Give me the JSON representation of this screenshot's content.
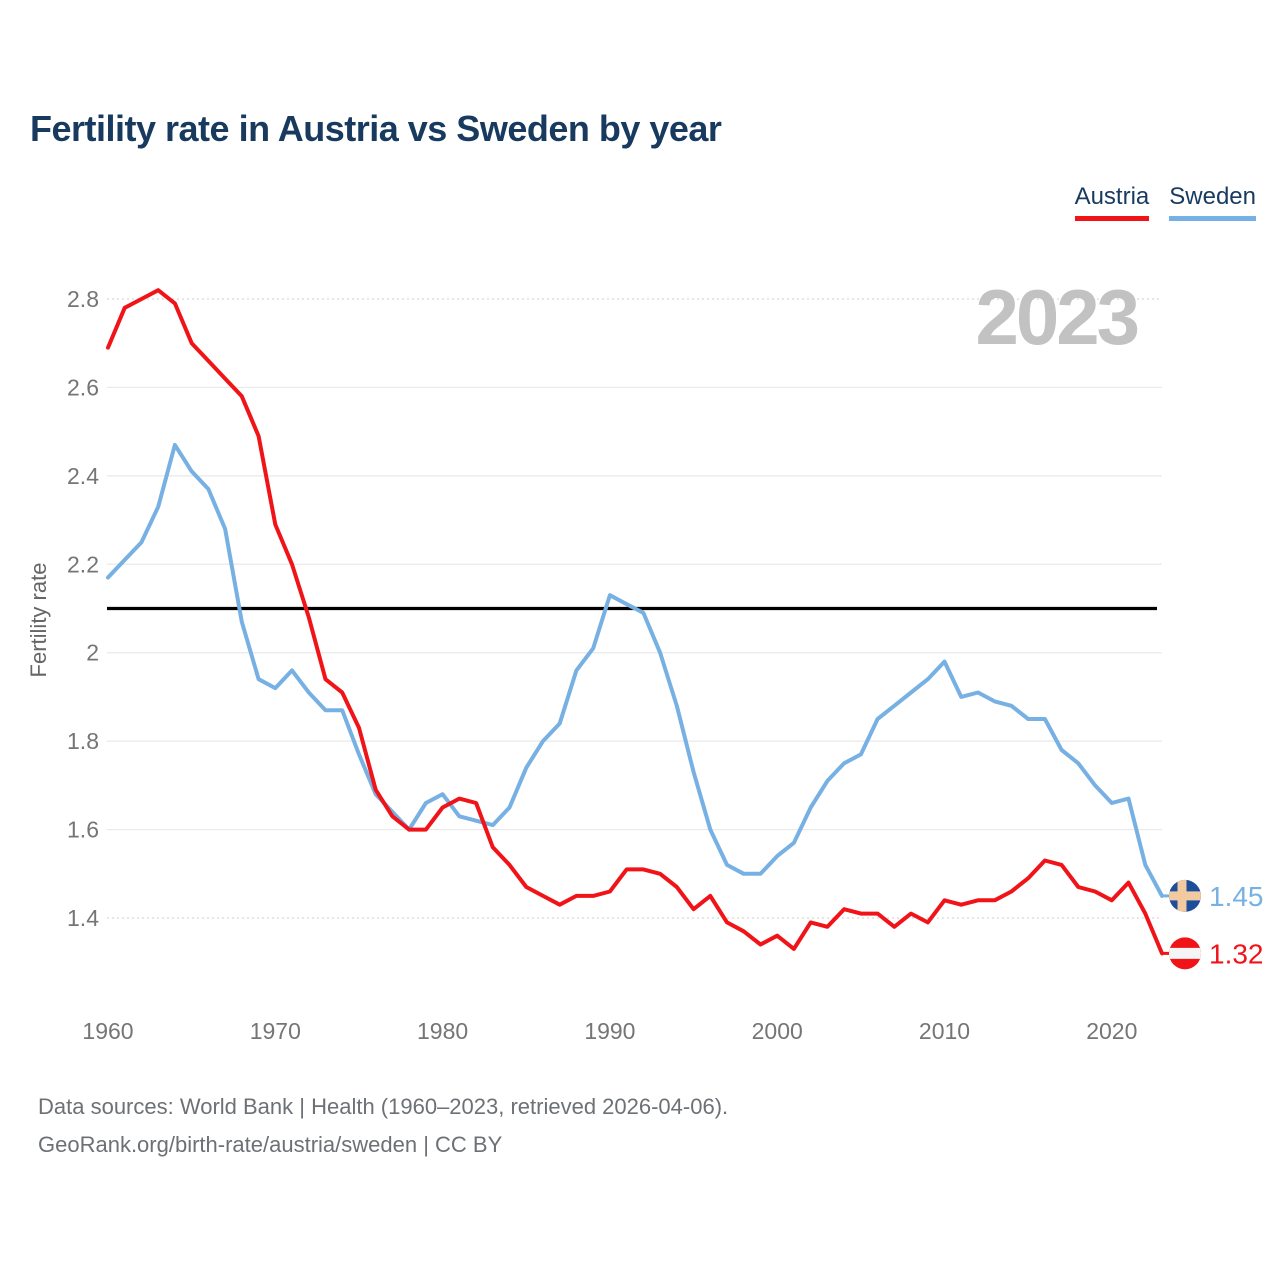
{
  "header": {
    "title": "Fertility rate in Austria vs Sweden by year"
  },
  "watermark": "2023",
  "footer": {
    "line1": "Data sources: World Bank | Health (1960–2023, retrieved 2026-04-06).",
    "line2": "GeoRank.org/birth-rate/austria/sweden | CC BY"
  },
  "colors": {
    "title_navy": "#173a5e",
    "austria_red": "#f01419",
    "sweden_blue": "#77b0e2",
    "tick_gray": "#757575",
    "watermark_gray": "#c2c2c2",
    "grid_solid": "#e9e9e9",
    "grid_dotted": "#d8d8d8",
    "reference_black": "#000000"
  },
  "chart_data": {
    "type": "line",
    "title": "Fertility rate in Austria vs Sweden by year",
    "xlabel": "",
    "ylabel": "Fertility rate",
    "xlim": [
      1960,
      2023
    ],
    "ylim": [
      1.4,
      2.8
    ],
    "grid": true,
    "legend_position": "top-right",
    "x_ticks": [
      1960,
      1970,
      1980,
      1990,
      2000,
      2010,
      2020
    ],
    "y_ticks": [
      2.8,
      2.6,
      2.4,
      2.2,
      2.0,
      1.8,
      1.6,
      1.4
    ],
    "y_tick_labels": [
      "2.8",
      "2.6",
      "2.4",
      "2.2",
      "2",
      "1.8",
      "1.6",
      "1.4"
    ],
    "reference_line": {
      "value": 2.1,
      "color": "#000000"
    },
    "years": [
      1960,
      1961,
      1962,
      1963,
      1964,
      1965,
      1966,
      1967,
      1968,
      1969,
      1970,
      1971,
      1972,
      1973,
      1974,
      1975,
      1976,
      1977,
      1978,
      1979,
      1980,
      1981,
      1982,
      1983,
      1984,
      1985,
      1986,
      1987,
      1988,
      1989,
      1990,
      1991,
      1992,
      1993,
      1994,
      1995,
      1996,
      1997,
      1998,
      1999,
      2000,
      2001,
      2002,
      2003,
      2004,
      2005,
      2006,
      2007,
      2008,
      2009,
      2010,
      2011,
      2012,
      2013,
      2014,
      2015,
      2016,
      2017,
      2018,
      2019,
      2020,
      2021,
      2022,
      2023
    ],
    "series": [
      {
        "name": "Austria",
        "color": "#f01419",
        "end_label": "1.32",
        "flag": {
          "type": "austria",
          "bg": "#f01419",
          "band": "#f5f5f5"
        },
        "values": [
          2.69,
          2.78,
          2.8,
          2.82,
          2.79,
          2.7,
          2.66,
          2.62,
          2.58,
          2.49,
          2.29,
          2.2,
          2.08,
          1.94,
          1.91,
          1.83,
          1.69,
          1.63,
          1.6,
          1.6,
          1.65,
          1.67,
          1.66,
          1.56,
          1.52,
          1.47,
          1.45,
          1.43,
          1.45,
          1.45,
          1.46,
          1.51,
          1.51,
          1.5,
          1.47,
          1.42,
          1.45,
          1.39,
          1.37,
          1.34,
          1.36,
          1.33,
          1.39,
          1.38,
          1.42,
          1.41,
          1.41,
          1.38,
          1.41,
          1.39,
          1.44,
          1.43,
          1.44,
          1.44,
          1.46,
          1.49,
          1.53,
          1.52,
          1.47,
          1.46,
          1.44,
          1.48,
          1.41,
          1.32
        ]
      },
      {
        "name": "Sweden",
        "color": "#77b0e2",
        "end_label": "1.45",
        "flag": {
          "type": "sweden",
          "bg": "#1d4e9c",
          "cross": "#f3c99f"
        },
        "values": [
          2.17,
          2.21,
          2.25,
          2.33,
          2.47,
          2.41,
          2.37,
          2.28,
          2.07,
          1.94,
          1.92,
          1.96,
          1.91,
          1.87,
          1.87,
          1.77,
          1.68,
          1.64,
          1.6,
          1.66,
          1.68,
          1.63,
          1.62,
          1.61,
          1.65,
          1.74,
          1.8,
          1.84,
          1.96,
          2.01,
          2.13,
          2.11,
          2.09,
          2.0,
          1.88,
          1.73,
          1.6,
          1.52,
          1.5,
          1.5,
          1.54,
          1.57,
          1.65,
          1.71,
          1.75,
          1.77,
          1.85,
          1.88,
          1.91,
          1.94,
          1.98,
          1.9,
          1.91,
          1.89,
          1.88,
          1.85,
          1.85,
          1.78,
          1.75,
          1.7,
          1.66,
          1.67,
          1.52,
          1.45
        ]
      }
    ]
  }
}
